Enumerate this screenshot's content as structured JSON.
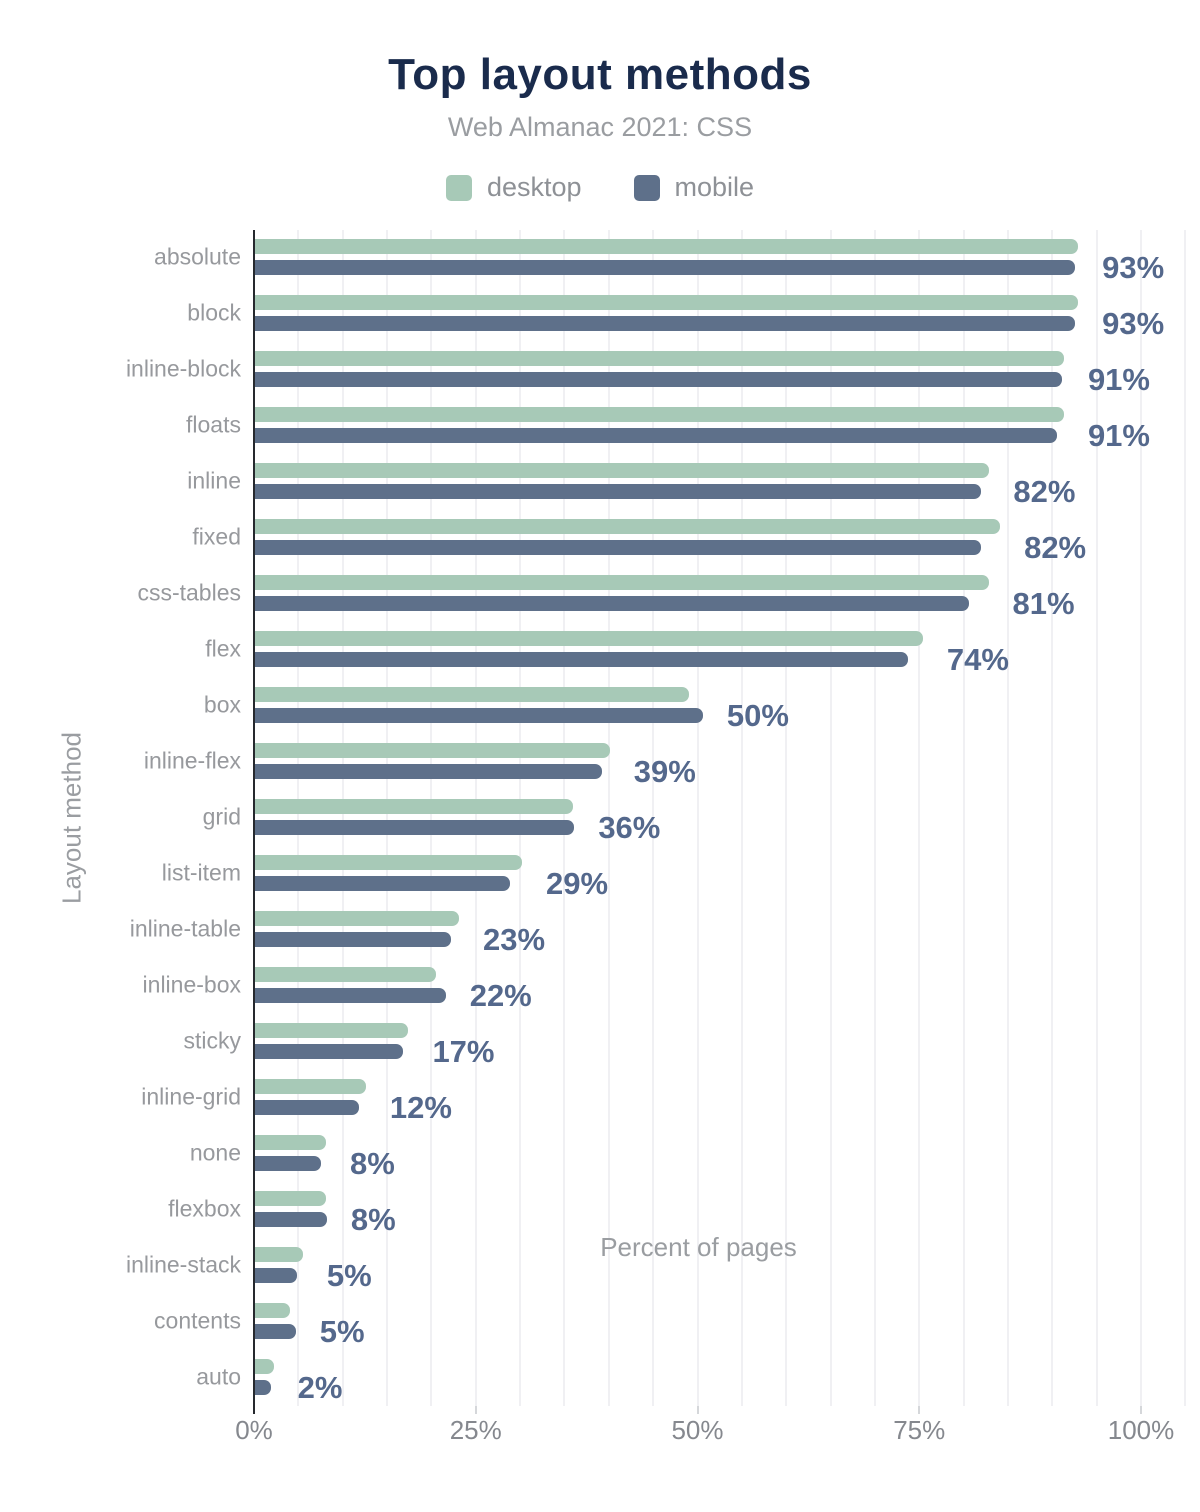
{
  "title": "Top layout methods",
  "subtitle": "Web Almanac 2021: CSS",
  "legend": [
    {
      "label": "desktop",
      "color": "#a7c9b7"
    },
    {
      "label": "mobile",
      "color": "#5e708a"
    }
  ],
  "colors": {
    "desktop_bar": "#a7c9b7",
    "mobile_bar": "#5e708a",
    "value_label": "#54688c",
    "title": "#1a2b4c",
    "axis_text": "#85888e",
    "gridline": "#f0f0f3",
    "axis_line": "#26292e"
  },
  "chart_data": {
    "type": "bar",
    "orientation": "horizontal",
    "title": "Top layout methods",
    "subtitle": "Web Almanac 2021: CSS",
    "xlabel": "Percent of pages",
    "ylabel": "Layout method",
    "legend_position": "top",
    "grid": true,
    "grid_step_pct": 5,
    "xlim": [
      0,
      105
    ],
    "x_ticks": [
      {
        "label": "0%",
        "pct": 0
      },
      {
        "label": "25%",
        "pct": 25
      },
      {
        "label": "50%",
        "pct": 50
      },
      {
        "label": "75%",
        "pct": 75
      },
      {
        "label": "100%",
        "pct": 100
      }
    ],
    "categories": [
      "absolute",
      "block",
      "inline-block",
      "floats",
      "inline",
      "fixed",
      "css-tables",
      "flex",
      "box",
      "inline-flex",
      "grid",
      "list-item",
      "inline-table",
      "inline-box",
      "sticky",
      "inline-grid",
      "none",
      "flexbox",
      "inline-stack",
      "contents",
      "auto"
    ],
    "series": [
      {
        "name": "desktop",
        "values": [
          92.8,
          92.8,
          91.2,
          91.2,
          82.8,
          84.0,
          82.7,
          75.3,
          48.9,
          40.0,
          35.9,
          30.1,
          23.0,
          20.4,
          17.3,
          12.5,
          8.0,
          8.0,
          5.4,
          3.9,
          2.1
        ]
      },
      {
        "name": "mobile",
        "values": [
          92.4,
          92.4,
          91.0,
          90.4,
          81.9,
          81.9,
          80.5,
          73.6,
          50.5,
          39.1,
          36.0,
          28.7,
          22.1,
          21.5,
          16.7,
          11.7,
          7.4,
          8.1,
          4.7,
          4.6,
          1.8
        ]
      }
    ],
    "value_labels": [
      "93%",
      "93%",
      "91%",
      "91%",
      "82%",
      "82%",
      "81%",
      "74%",
      "50%",
      "39%",
      "36%",
      "29%",
      "23%",
      "22%",
      "17%",
      "12%",
      "8%",
      "8%",
      "5%",
      "5%",
      "2%"
    ]
  }
}
